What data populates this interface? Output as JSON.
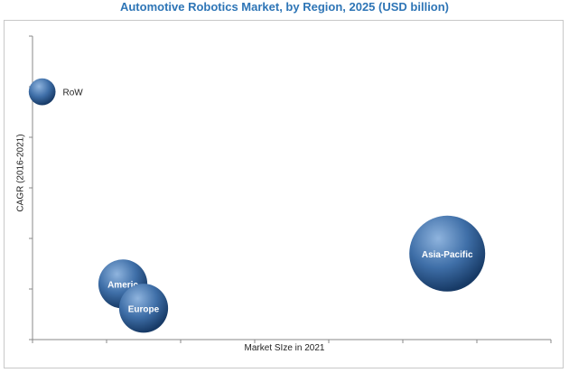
{
  "chart_data": {
    "type": "scatter",
    "title": "Automotive Robotics Market, by Region, 2025 (USD billion)",
    "xlabel": "Market SIze in 2021",
    "ylabel": "CAGR (2016-2021)",
    "grid": false,
    "xlim": [
      0,
      7
    ],
    "ylim": [
      0,
      6
    ],
    "points": [
      {
        "label": "RoW",
        "x": 0.13,
        "y": 4.9,
        "size": 0.3,
        "label_outside": true
      },
      {
        "label": "Americ",
        "x": 1.22,
        "y": 1.1,
        "size": 1.0,
        "label_outside": false
      },
      {
        "label": "Europe",
        "x": 1.5,
        "y": 0.62,
        "size": 1.0,
        "label_outside": false
      },
      {
        "label": "Asia-Pacific",
        "x": 5.6,
        "y": 1.7,
        "size": 2.4,
        "label_outside": false
      }
    ],
    "colors": {
      "bubble_light": "#8fb4de",
      "bubble_mid": "#3f6fa8",
      "bubble_dark": "#173a66",
      "title": "#2e75b6"
    }
  }
}
